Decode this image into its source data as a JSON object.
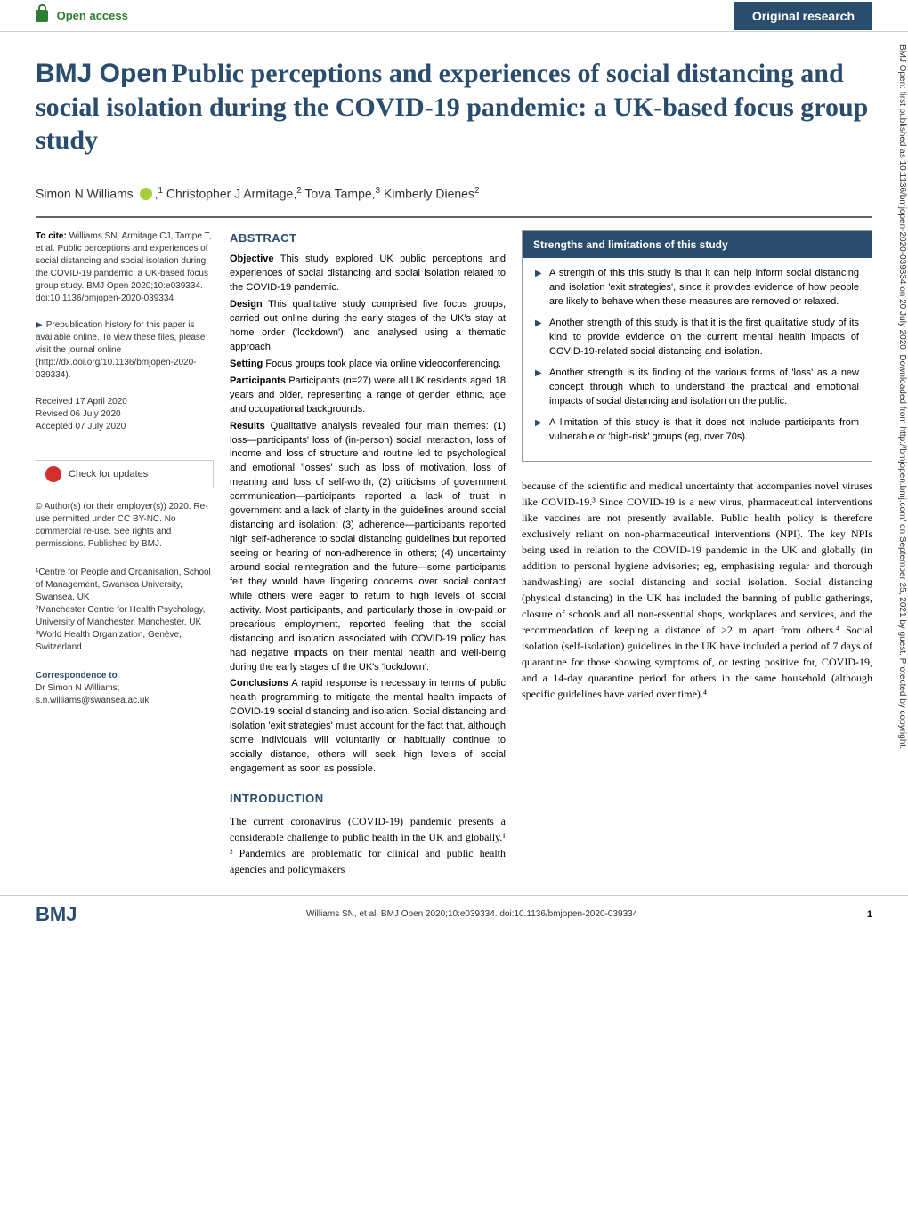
{
  "topbar": {
    "open_access": "Open access",
    "research_label": "Original research"
  },
  "sidebar_text": "BMJ Open: first published as 10.1136/bmjopen-2020-039334 on 20 July 2020. Downloaded from http://bmjopen.bmj.com/ on September 25, 2021 by guest. Protected by copyright.",
  "title": {
    "journal": "BMJ Open",
    "main": "Public perceptions and experiences of social distancing and social isolation during the COVID-19 pandemic: a UK-based focus group study"
  },
  "authors_line": "Simon N Williams ,¹ Christopher J Armitage,² Tova Tampe,³ Kimberly Dienes²",
  "authors": {
    "a1": "Simon N Williams",
    "aff1": "1",
    "a2": "Christopher J Armitage,",
    "aff2": "2",
    "a3": "Tova Tampe,",
    "aff3": "3",
    "a4": "Kimberly Dienes",
    "aff4": "2"
  },
  "left": {
    "cite_strong": "To cite:",
    "cite_text": "Williams SN, Armitage CJ, Tampe T, et al. Public perceptions and experiences of social distancing and social isolation during the COVID-19 pandemic: a UK-based focus group study. BMJ Open 2020;10:e039334. doi:10.1136/bmjopen-2020-039334",
    "prepub": "Prepublication history for this paper is available online. To view these files, please visit the journal online (http://dx.doi.org/10.1136/bmjopen-2020-039334).",
    "dates": "Received 17 April 2020\nRevised 06 July 2020\nAccepted 07 July 2020",
    "updates": "Check for updates",
    "copyright": "© Author(s) (or their employer(s)) 2020. Re-use permitted under CC BY-NC. No commercial re-use. See rights and permissions. Published by BMJ.",
    "affiliation": "¹Centre for People and Organisation, School of Management, Swansea University, Swansea, UK\n²Manchester Centre for Health Psychology, University of Manchester, Manchester, UK\n³World Health Organization, Genève, Switzerland",
    "corr_strong": "Correspondence to",
    "corr_text": "Dr Simon N Williams;\ns.n.williams@swansea.ac.uk"
  },
  "abstract": {
    "header": "ABSTRACT",
    "objective_label": "Objective",
    "objective": "This study explored UK public perceptions and experiences of social distancing and social isolation related to the COVID-19 pandemic.",
    "design_label": "Design",
    "design": "This qualitative study comprised five focus groups, carried out online during the early stages of the UK's stay at home order ('lockdown'), and analysed using a thematic approach.",
    "setting_label": "Setting",
    "setting": "Focus groups took place via online videoconferencing.",
    "participants_label": "Participants",
    "participants": "Participants (n=27) were all UK residents aged 18 years and older, representing a range of gender, ethnic, age and occupational backgrounds.",
    "results_label": "Results",
    "results": "Qualitative analysis revealed four main themes: (1) loss—participants' loss of (in-person) social interaction, loss of income and loss of structure and routine led to psychological and emotional 'losses' such as loss of motivation, loss of meaning and loss of self-worth; (2) criticisms of government communication—participants reported a lack of trust in government and a lack of clarity in the guidelines around social distancing and isolation; (3) adherence—participants reported high self-adherence to social distancing guidelines but reported seeing or hearing of non-adherence in others; (4) uncertainty around social reintegration and the future—some participants felt they would have lingering concerns over social contact while others were eager to return to high levels of social activity. Most participants, and particularly those in low-paid or precarious employment, reported feeling that the social distancing and isolation associated with COVID-19 policy has had negative impacts on their mental health and well-being during the early stages of the UK's 'lockdown'.",
    "conclusions_label": "Conclusions",
    "conclusions": "A rapid response is necessary in terms of public health programming to mitigate the mental health impacts of COVID-19 social distancing and isolation. Social distancing and isolation 'exit strategies' must account for the fact that, although some individuals will voluntarily or habitually continue to socially distance, others will seek high levels of social engagement as soon as possible."
  },
  "intro": {
    "header": "INTRODUCTION",
    "p1": "The current coronavirus (COVID-19) pandemic presents a considerable challenge to public health in the UK and globally.¹ ² Pandemics are problematic for clinical and public health agencies and policymakers"
  },
  "box": {
    "header": "Strengths and limitations of this study",
    "items": [
      "A strength of this this study is that it can help inform social distancing and isolation 'exit strategies', since it provides evidence of how people are likely to behave when these measures are removed or relaxed.",
      "Another strength of this study is that it is the first qualitative study of its kind to provide evidence on the current mental health impacts of COVID-19-related social distancing and isolation.",
      "Another strength is its finding of the various forms of 'loss' as a new concept through which to understand the practical and emotional impacts of social distancing and isolation on the public.",
      "A limitation of this study is that it does not include participants from vulnerable or 'high-risk' groups (eg, over 70s)."
    ]
  },
  "right_body": "because of the scientific and medical uncertainty that accompanies novel viruses like COVID-19.³ Since COVID-19 is a new virus, pharmaceutical interventions like vaccines are not presently available. Public health policy is therefore exclusively reliant on non-pharmaceutical interventions (NPI). The key NPIs being used in relation to the COVID-19 pandemic in the UK and globally (in addition to personal hygiene advisories; eg, emphasising regular and thorough handwashing) are social distancing and social isolation. Social distancing (physical distancing) in the UK has included the banning of public gatherings, closure of schools and all non-essential shops, workplaces and services, and the recommendation of keeping a distance of >2 m apart from others.⁴ Social isolation (self-isolation) guidelines in the UK have included a period of 7 days of quarantine for those showing symptoms of, or testing positive for, COVID-19, and a 14-day quarantine period for others in the same household (although specific guidelines have varied over time).⁴",
  "footer": {
    "logo": "BMJ",
    "citation": "Williams SN, et al. BMJ Open 2020;10:e039334. doi:10.1136/bmjopen-2020-039334",
    "page": "1"
  },
  "colors": {
    "brand": "#2a4d6e",
    "green": "#2e7d32",
    "red": "#d32f2f",
    "orcid": "#a6ce39"
  }
}
